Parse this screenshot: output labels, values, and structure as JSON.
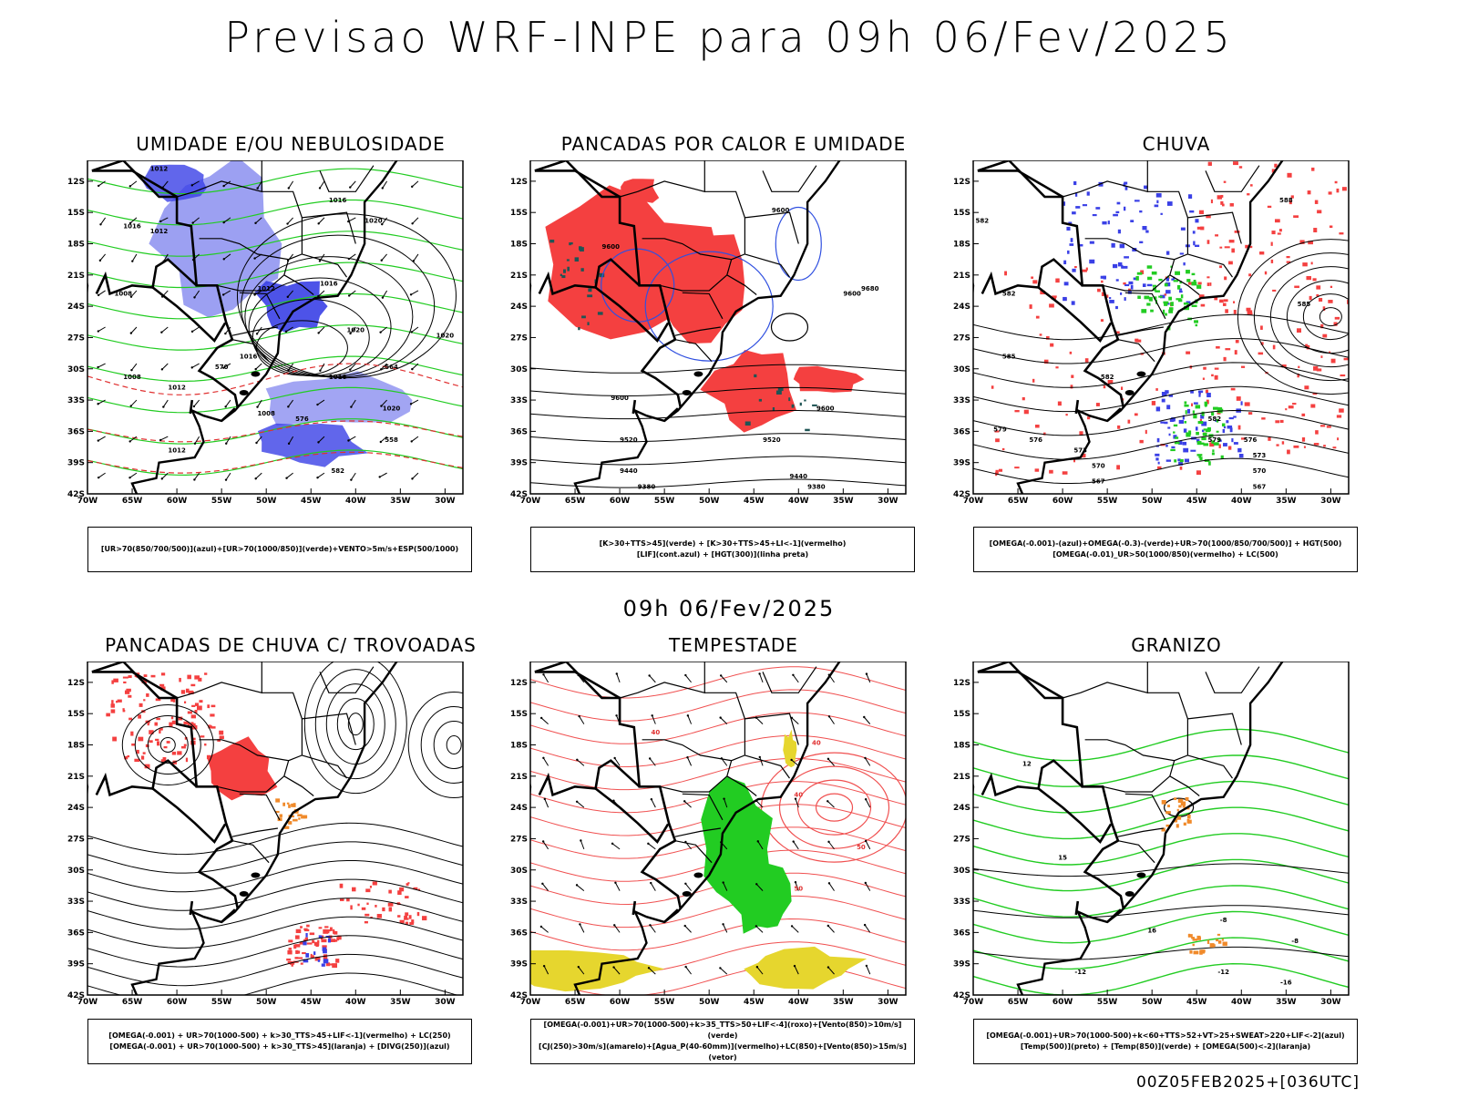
{
  "header": {
    "title": "Previsao WRF-INPE  para 09h 06/Fev/2025"
  },
  "subtitle": "09h 06/Fev/2025",
  "footer": "00Z05FEB2025+[036UTC]",
  "axes": {
    "lat_labels": [
      "12S",
      "15S",
      "18S",
      "21S",
      "24S",
      "27S",
      "30S",
      "33S",
      "36S",
      "39S",
      "42S"
    ],
    "lon_labels": [
      "70W",
      "65W",
      "60W",
      "55W",
      "50W",
      "45W",
      "40W",
      "35W",
      "30W"
    ]
  },
  "colors": {
    "blue_moist": "#8b8ff0",
    "deep_blue": "#3a40e6",
    "green": "#22cc22",
    "red": "#f44040",
    "teal": "#1f5555",
    "yellow": "#e6d62e",
    "orange": "#f08a2a"
  },
  "panels": [
    {
      "id": "umidade",
      "title": "UMIDADE E/OU NEBULOSIDADE",
      "legend": [
        "[UR>70(850/700/500)](azul)+[UR>70(1000/850)](verde)+VENTO>5m/s+ESP(500/1000)"
      ],
      "contour_labels": [
        "1012",
        "1012",
        "1016",
        "1016",
        "1020",
        "1012",
        "1008",
        "1016",
        "1020",
        "1016",
        "1008",
        "1012",
        "1020",
        "1016",
        "576",
        "570",
        "564",
        "558",
        "582",
        "1012",
        "1008",
        "1020"
      ]
    },
    {
      "id": "pancadas_calor",
      "title": "PANCADAS POR CALOR E UMIDADE",
      "legend": [
        "[K>30+TTS>45](verde) + [K>30+TTS>45+LI<-1](vermelho)",
        "[LIF](cont.azul) + [HGT(300)](linha preta)"
      ],
      "contour_labels": [
        "9600",
        "9600",
        "9600",
        "9600",
        "9600",
        "9680",
        "9520",
        "9520",
        "9440",
        "9440",
        "9380",
        "9380"
      ]
    },
    {
      "id": "chuva",
      "title": "CHUVA",
      "legend": [
        "[OMEGA(-0.001)-(azul)+OMEGA(-0.3)-(verde)+UR>70(1000/850/700/500)] + HGT(500)",
        "[OMEGA(-0.01)_UR>50(1000/850)(vermelho) + LC(500)"
      ],
      "contour_labels": [
        "582",
        "582",
        "588",
        "585",
        "585",
        "582",
        "579",
        "576",
        "573",
        "570",
        "567",
        "582",
        "579",
        "576",
        "573",
        "570",
        "567"
      ]
    },
    {
      "id": "trovoadas",
      "title": "PANCADAS DE CHUVA C/ TROVOADAS",
      "legend": [
        "[OMEGA(-0.001) + UR>70(1000-500) + k>30_TTS>45+LIF<-1](vermelho) + LC(250)",
        "[OMEGA(-0.001) + UR>70(1000-500) + k>30_TTS>45](laranja) + [DIVG(250)](azul)"
      ],
      "contour_labels": []
    },
    {
      "id": "tempestade",
      "title": "TEMPESTADE",
      "legend": [
        "[OMEGA(-0.001)+UR>70(1000-500)+k>35_TTS>50+LIF<-4](roxo)+[Vento(850)>10m/s](verde)",
        "[CJ(250)>30m/s](amarelo)+[Agua_P(40-60mm)](vermelho)+LC(850)+[Vento(850)>15m/s](vetor)"
      ],
      "contour_labels": [
        "40",
        "40",
        "50",
        "50",
        "40"
      ]
    },
    {
      "id": "granizo",
      "title": "GRANIZO",
      "legend": [
        "[OMEGA(-0.001)+UR>70(1000-500)+k<60+TTS>52+VT>25+SWEAT>220+LIF<-2](azul)",
        "[Temp(500)](preto) + [Temp(850)](verde) + [OMEGA(500)<-2](laranja)"
      ],
      "contour_labels": [
        "-8",
        "-8",
        "-12",
        "-12",
        "-16",
        "12",
        "15",
        "16"
      ]
    }
  ]
}
